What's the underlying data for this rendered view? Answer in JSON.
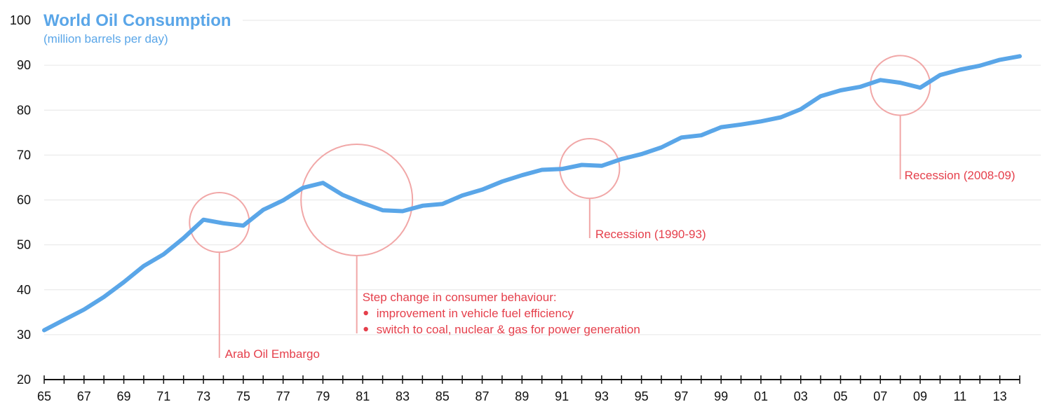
{
  "chart_data": {
    "type": "line",
    "title": "World Oil Consumption",
    "subtitle": "(million barrels per day)",
    "xlabel": "",
    "ylabel": "",
    "xlim": [
      1965,
      2014
    ],
    "ylim": [
      20,
      100
    ],
    "grid": true,
    "yticks": [
      20,
      30,
      40,
      50,
      60,
      70,
      80,
      90,
      100
    ],
    "xtick_labels": [
      "65",
      "67",
      "69",
      "71",
      "73",
      "75",
      "77",
      "79",
      "81",
      "83",
      "85",
      "87",
      "89",
      "91",
      "93",
      "95",
      "97",
      "99",
      "01",
      "03",
      "05",
      "07",
      "09",
      "11",
      "13"
    ],
    "series": [
      {
        "name": "World Oil Consumption",
        "color": "#5aa6e8",
        "x": [
          1965,
          1966,
          1967,
          1968,
          1969,
          1970,
          1971,
          1972,
          1973,
          1974,
          1975,
          1976,
          1977,
          1978,
          1979,
          1980,
          1981,
          1982,
          1983,
          1984,
          1985,
          1986,
          1987,
          1988,
          1989,
          1990,
          1991,
          1992,
          1993,
          1994,
          1995,
          1996,
          1997,
          1998,
          1999,
          2000,
          2001,
          2002,
          2003,
          2004,
          2005,
          2006,
          2007,
          2008,
          2009,
          2010,
          2011,
          2012,
          2013,
          2014
        ],
        "values": [
          31.0,
          33.3,
          35.6,
          38.4,
          41.7,
          45.3,
          47.9,
          51.5,
          55.6,
          54.8,
          54.3,
          57.8,
          59.9,
          62.7,
          63.8,
          61.1,
          59.3,
          57.7,
          57.5,
          58.7,
          59.1,
          61.0,
          62.3,
          64.1,
          65.5,
          66.7,
          66.9,
          67.8,
          67.6,
          69.1,
          70.2,
          71.7,
          73.9,
          74.4,
          76.2,
          76.8,
          77.5,
          78.4,
          80.2,
          83.1,
          84.4,
          85.2,
          86.7,
          86.1,
          85.0,
          87.8,
          89.0,
          89.9,
          91.2,
          92.0
        ]
      }
    ],
    "annotations": [
      {
        "label": "Arab Oil Embargo",
        "circle": {
          "x": 1973.8,
          "y": 55,
          "r_years": 1.5
        },
        "bullets": []
      },
      {
        "label": "Step change in consumer behaviour:",
        "circle": {
          "x": 1980.7,
          "y": 60,
          "r_years": 2.8
        },
        "bullets": [
          "improvement in vehicle fuel efficiency",
          "switch to coal, nuclear & gas for power generation"
        ]
      },
      {
        "label": "Recession (1990-93)",
        "circle": {
          "x": 1992.4,
          "y": 67,
          "r_years": 1.5
        },
        "bullets": []
      },
      {
        "label": "Recession (2008-09)",
        "circle": {
          "x": 2008.0,
          "y": 85.5,
          "r_years": 1.5
        },
        "bullets": []
      }
    ],
    "annotation_color": "#e53f4b"
  }
}
